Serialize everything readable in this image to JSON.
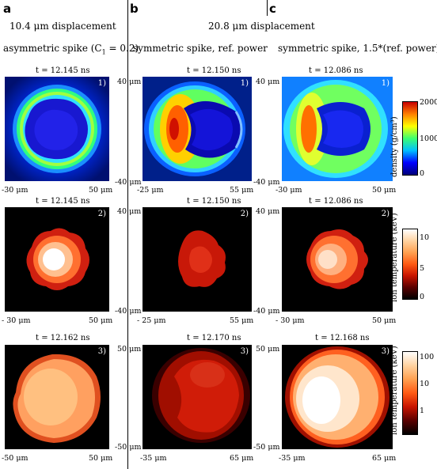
{
  "panels": [
    "a",
    "b",
    "c"
  ],
  "headers": {
    "a_line1": "10.4 μm displacement",
    "a_line2": "asymmetric spike (C",
    "a_line2_sub": "1",
    "a_line2_end": " = 0.2)",
    "bc_line1": "20.8 μm displacement",
    "b_line2": "symmetric spike, ref. power",
    "c_line2": "symmetric spike, 1.5*(ref. power)"
  },
  "rows": [
    {
      "times": [
        "t = 12.145 ns",
        "t = 12.150 ns",
        "t = 12.086 ns"
      ],
      "index": "1)",
      "ticks": {
        "a_left": "-30 μm",
        "a_right": "50 μm",
        "b_left": "-25 μm",
        "b_right": "55 μm",
        "b_top": "40 μm",
        "b_bottom": "-40 μm",
        "c_left": "-30 μm",
        "c_right": "50 μm",
        "c_top": "40 μm",
        "c_bottom": "-40 μm"
      }
    },
    {
      "times": [
        "t = 12.145 ns",
        "t = 12.150 ns",
        "t = 12.086 ns"
      ],
      "index": "2)",
      "ticks": {
        "a_left": "- 30 μm",
        "a_right": "50 μm",
        "b_left": "- 25 μm",
        "b_right": "55 μm",
        "b_top": "40 μm",
        "b_bottom": "-40 μm",
        "c_left": "- 30 μm",
        "c_right": "50 μm",
        "c_top": "40 μm",
        "c_bottom": "-40 μm"
      }
    },
    {
      "times": [
        "t = 12.162 ns",
        "t = 12.170 ns",
        "t = 12.168 ns"
      ],
      "index": "3)",
      "ticks": {
        "a_left": "-50 μm",
        "a_right": "50 μm",
        "b_left": "-35 μm",
        "b_right": "65 μm",
        "b_top": "50 μm",
        "b_bottom": "-50 μm",
        "c_left": "-35 μm",
        "c_right": "65 μm",
        "c_top": "50 μm",
        "c_bottom": "-50 μm"
      }
    }
  ],
  "colorbars": [
    {
      "label": "density (g/cm³)",
      "ticks": [
        "2000",
        "1000",
        "0"
      ]
    },
    {
      "label": "ion temperature (keV)",
      "ticks": [
        "10",
        "5",
        "0"
      ]
    },
    {
      "label": "ion temperature (keV)",
      "ticks": [
        "100",
        "10",
        "1"
      ]
    }
  ],
  "colors": {
    "density_colormap": [
      "#00007a",
      "#0000ff",
      "#00bfff",
      "#3cff70",
      "#ffff00",
      "#ff8000",
      "#c80000"
    ],
    "temperature_colormap": [
      "#000000",
      "#5a0000",
      "#c81400",
      "#ff5a14",
      "#ffa050",
      "#ffd2a0",
      "#ffffff"
    ]
  }
}
